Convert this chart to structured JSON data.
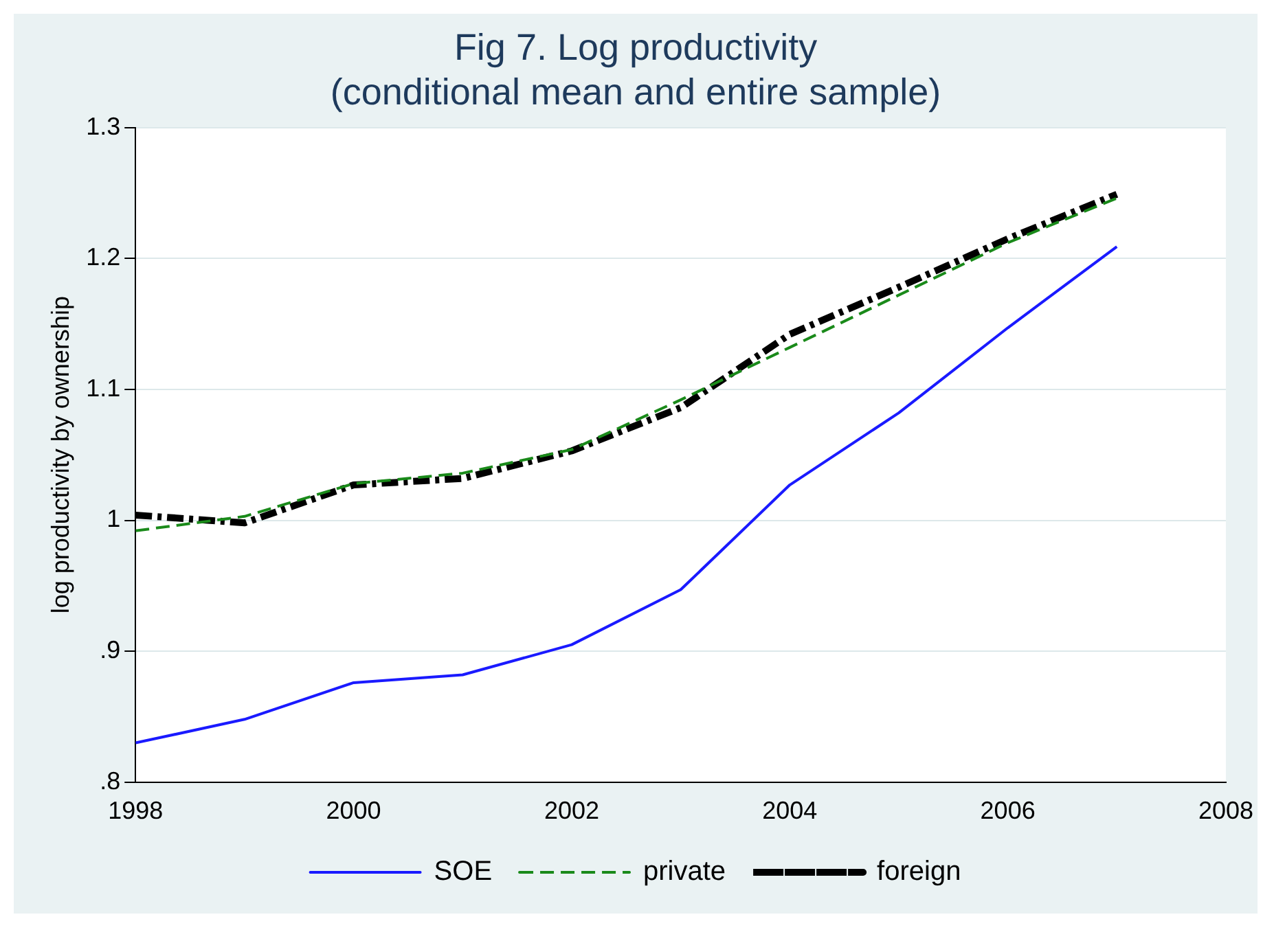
{
  "chart_data": {
    "type": "line",
    "title": "Fig 7. Log productivity\n(conditional mean and entire sample)",
    "ylabel": "log productivity by ownership",
    "x": [
      1998,
      1999,
      2000,
      2001,
      2002,
      2003,
      2004,
      2005,
      2006,
      2007
    ],
    "xlim": [
      1998,
      2008
    ],
    "xticks": [
      1998,
      2000,
      2002,
      2004,
      2006,
      2008
    ],
    "ylim": [
      0.8,
      1.3
    ],
    "yticks": [
      {
        "value": 0.8,
        "label": ".8"
      },
      {
        "value": 0.9,
        "label": ".9"
      },
      1,
      1.1,
      1.2,
      1.3
    ],
    "grid": "y",
    "legend": "bottom",
    "marker": "none",
    "series": [
      {
        "name": "SOE",
        "color": "#1a1aff",
        "line_style": "solid",
        "values": [
          0.83,
          0.848,
          0.876,
          0.882,
          0.905,
          0.947,
          1.027,
          1.082,
          1.147,
          1.209
        ]
      },
      {
        "name": "private",
        "color": "#1a8a1a",
        "line_style": "dashed",
        "values": [
          0.992,
          1.003,
          1.028,
          1.036,
          1.054,
          1.092,
          1.132,
          1.172,
          1.212,
          1.246
        ]
      },
      {
        "name": "foreign",
        "color": "#000000",
        "line_style": "dotted",
        "values": [
          1.004,
          0.998,
          1.027,
          1.032,
          1.053,
          1.086,
          1.142,
          1.178,
          1.215,
          1.249
        ]
      }
    ]
  }
}
